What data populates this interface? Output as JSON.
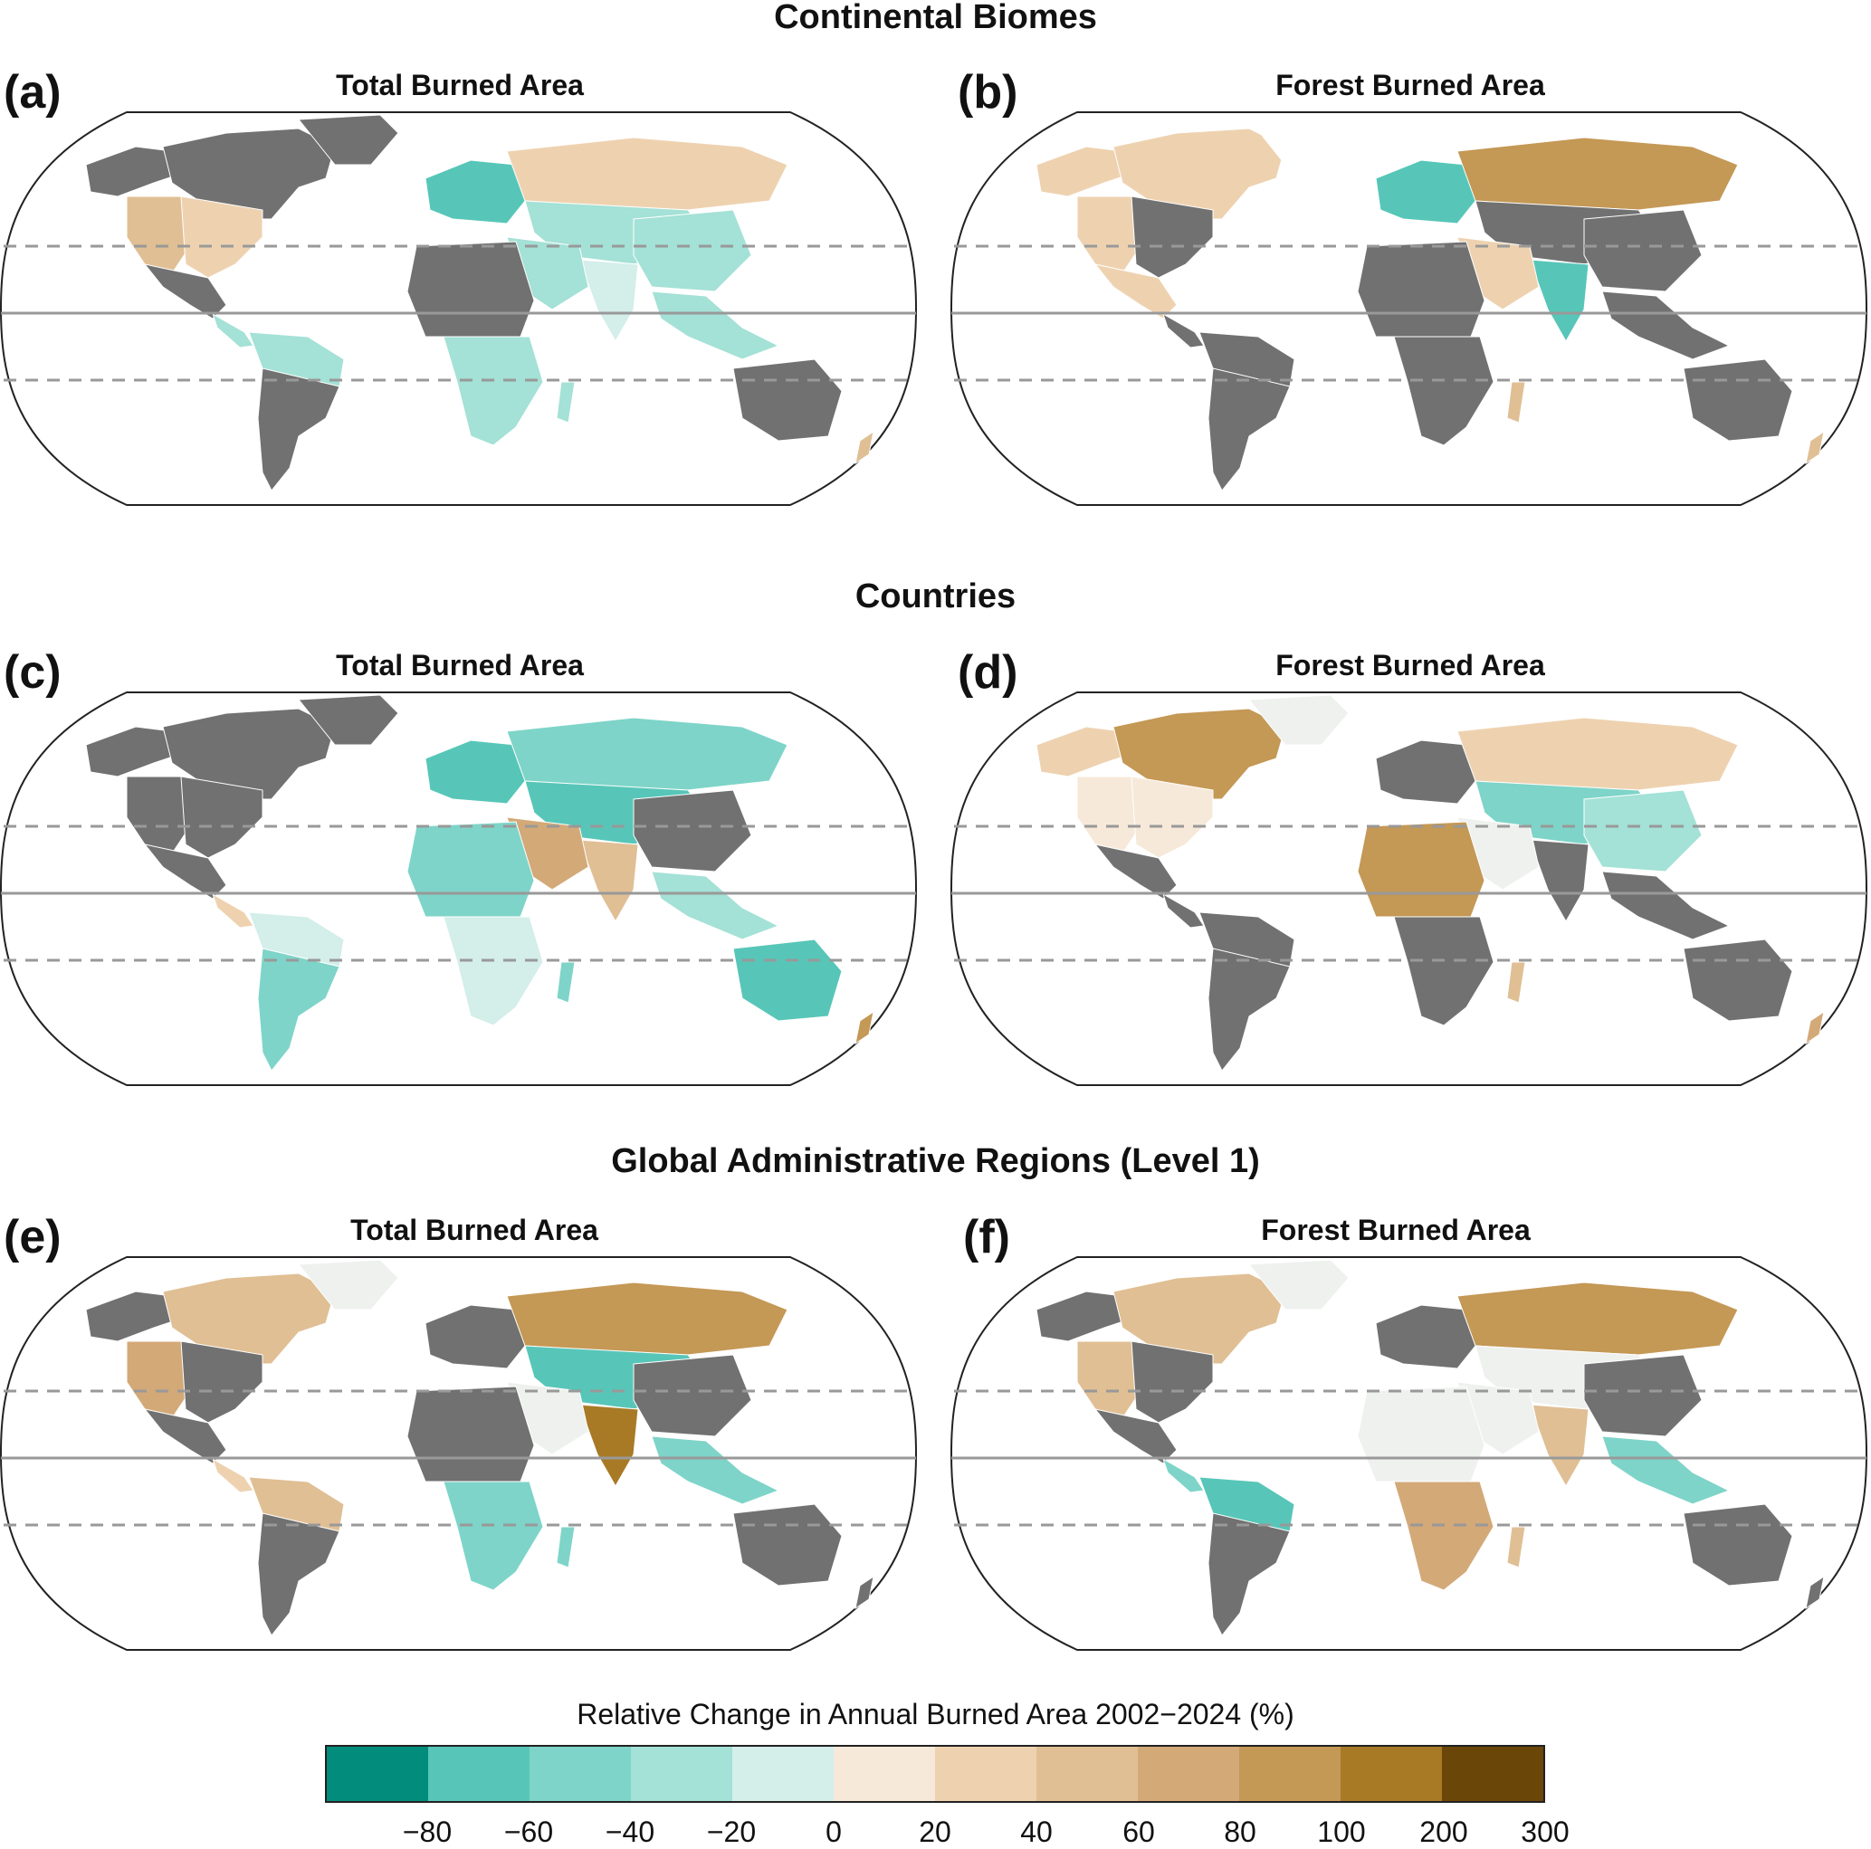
{
  "sections": [
    {
      "title": "Continental Biomes"
    },
    {
      "title": "Countries"
    },
    {
      "title": "Global Administrative Regions (Level 1)"
    }
  ],
  "panels": [
    {
      "letter": "(a)",
      "title": "Total Burned Area"
    },
    {
      "letter": "(b)",
      "title": "Forest Burned Area"
    },
    {
      "letter": "(c)",
      "title": "Total Burned Area"
    },
    {
      "letter": "(d)",
      "title": "Forest Burned Area"
    },
    {
      "letter": "(e)",
      "title": "Total Burned Area"
    },
    {
      "letter": "(f)",
      "title": "Forest Burned Area"
    }
  ],
  "legend": {
    "title": "Relative Change in Annual Burned Area 2002−2024 (%)",
    "colors": [
      "#018c7c",
      "#57c6b8",
      "#7ed4c8",
      "#a4e1d6",
      "#d4eeea",
      "#f7e9d9",
      "#eed2b0",
      "#e0bf94",
      "#d3a978",
      "#c49855",
      "#a87a26",
      "#6a4708"
    ],
    "ticks": [
      "−80",
      "−60",
      "−40",
      "−20",
      "0",
      "20",
      "40",
      "60",
      "80",
      "100",
      "200",
      "300"
    ]
  },
  "colors": {
    "no_data": "#717171",
    "land_outline": "#ffffff",
    "frame": "#222222",
    "equator": "#999999",
    "tropics": "#999999"
  }
}
